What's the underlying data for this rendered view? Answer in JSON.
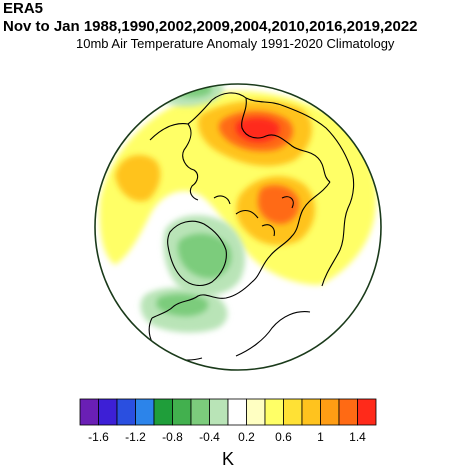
{
  "header": {
    "source": "ERA5",
    "period": "Nov to Jan 1988,1990,2002,2009,2004,2010,2016,2019,2022",
    "subtitle": "10mb Air Temperature Anomaly  1991-2020 Climatology"
  },
  "colorbar": {
    "colors": [
      "#6a1fb5",
      "#3d1fd6",
      "#2a4fe0",
      "#2c84ea",
      "#1f9e3a",
      "#42b04e",
      "#7ccc7c",
      "#b9e4b7",
      "#ffffff",
      "#ffffc2",
      "#ffff66",
      "#ffe135",
      "#ffc31e",
      "#ff9d14",
      "#ff6a14",
      "#ff2a1a"
    ],
    "tick_labels": [
      "-1.6",
      "-1.2",
      "-0.8",
      "-0.4",
      "0.2",
      "0.6",
      "1",
      "1.4"
    ],
    "unit": "K"
  },
  "map": {
    "projection": "north polar stereographic",
    "anomaly_colors": {
      "weak_warm": "#ffff66",
      "mod_warm": "#ffc31e",
      "strong_warm": "#ff6a14",
      "peak_warm": "#ff2a1a",
      "weak_cold": "#b9e4b7",
      "mod_cold": "#7ccc7c"
    }
  }
}
